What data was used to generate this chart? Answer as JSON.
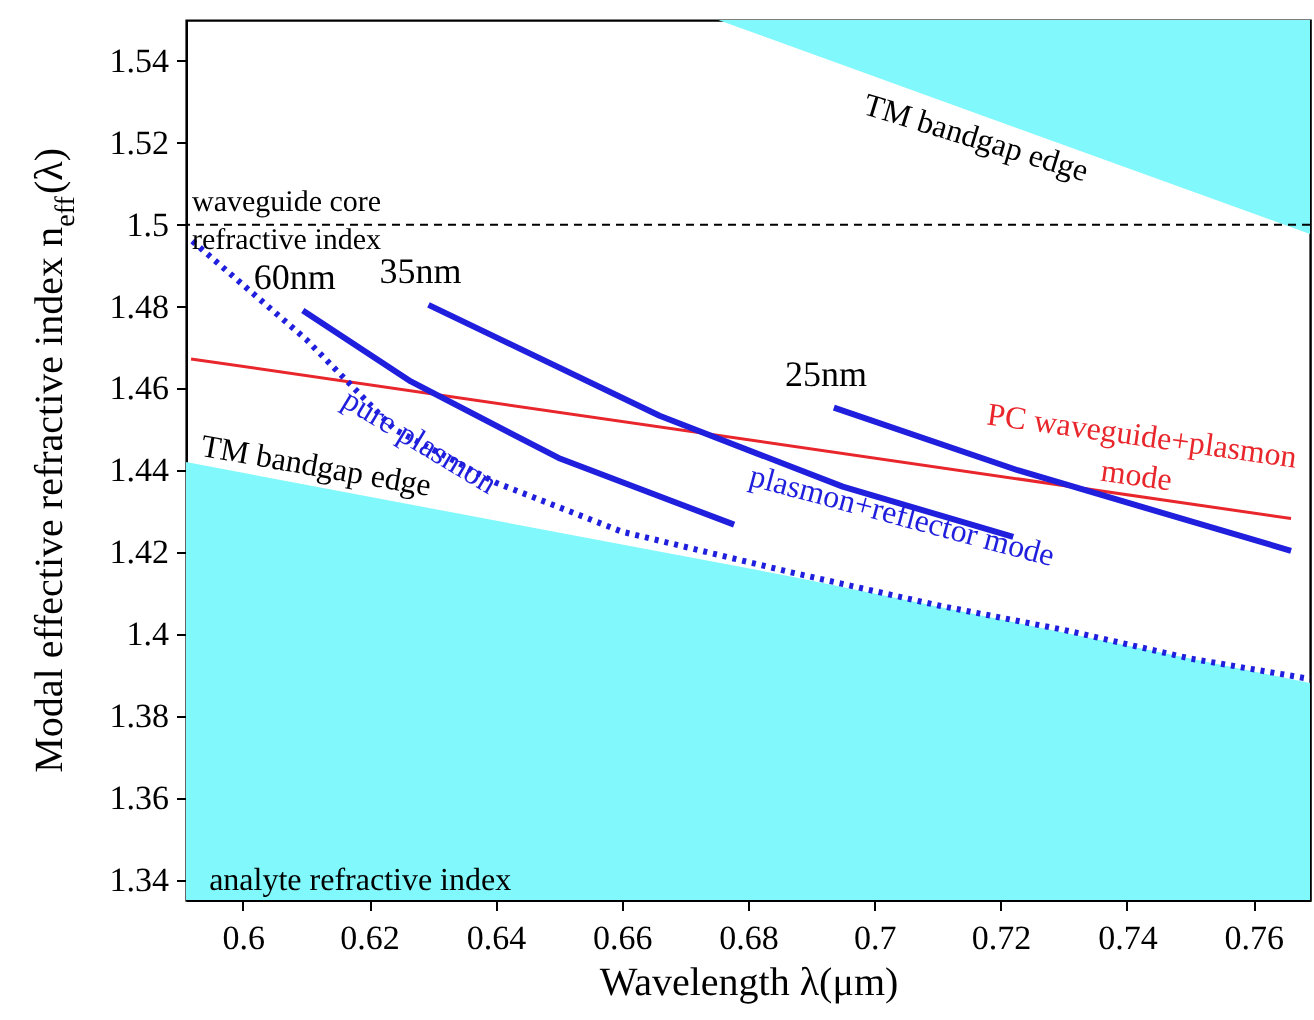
{
  "chart_data": {
    "type": "line",
    "xlabel": "Wavelength λ(μm)",
    "ylabel": "Modal effective refractive index  n$_{eff}$(λ)",
    "xlim": [
      0.591,
      0.769
    ],
    "ylim": [
      1.335,
      1.55
    ],
    "xticks": [
      0.6,
      0.62,
      0.64,
      0.66,
      0.68,
      0.7,
      0.72,
      0.74,
      0.76
    ],
    "yticks": [
      1.34,
      1.36,
      1.38,
      1.4,
      1.42,
      1.44,
      1.46,
      1.48,
      1.5,
      1.52,
      1.54
    ],
    "grid": false,
    "series": [
      {
        "type": "area",
        "color": "#80f8fc",
        "x": [
          0.591,
          0.687,
          0.769
        ],
        "values": [
          1.442,
          1.414,
          1.388
        ]
      },
      {
        "type": "area",
        "color": "#80f8fc",
        "x": [
          0.6753,
          0.769
        ],
        "values": [
          1.55,
          1.4977
        ]
      },
      {
        "color": "#e8262b",
        "line_style": "solid",
        "x": [
          0.5918,
          0.766
        ],
        "values": [
          1.4672,
          1.4282
        ]
      },
      {
        "color": "#1f1fdd",
        "line_style": "dotted",
        "x": [
          0.592,
          0.61,
          0.624,
          0.64,
          0.66,
          0.687,
          0.71,
          0.73,
          0.75,
          0.769
        ],
        "values": [
          1.496,
          1.472,
          1.45,
          1.437,
          1.425,
          1.415,
          1.407,
          1.401,
          1.394,
          1.389
        ]
      },
      {
        "name": "60nm",
        "color": "#1f1fdd",
        "line_style": "solid",
        "x": [
          0.6095,
          0.6266,
          0.65,
          0.6778
        ],
        "values": [
          1.479,
          1.4617,
          1.443,
          1.4267
        ]
      },
      {
        "name": "35nm",
        "color": "#1f1fdd",
        "line_style": "solid",
        "x": [
          0.6294,
          0.666,
          0.695,
          0.722
        ],
        "values": [
          1.4804,
          1.4533,
          1.436,
          1.4237
        ]
      },
      {
        "name": "25nm",
        "color": "#1f1fdd",
        "line_style": "solid",
        "x": [
          0.6936,
          0.7227,
          0.766
        ],
        "values": [
          1.4553,
          1.44,
          1.4203
        ]
      }
    ],
    "ref_lines": [
      {
        "axis": "y",
        "value": 1.5,
        "label": "waveguide core\nrefractive index",
        "color": "#000000",
        "line_style": "dashed"
      }
    ],
    "annotations": [
      "TM bandgap edge",
      "TM bandgap edge",
      {
        "text": "pure plasmon",
        "x": 0.628,
        "y": 1.447
      },
      "plasmon+reflector mode",
      "PC waveguide+plasmon\nmode",
      {
        "text": "analyte refractive index",
        "x": 0.5915,
        "y": 1.336
      }
    ]
  }
}
